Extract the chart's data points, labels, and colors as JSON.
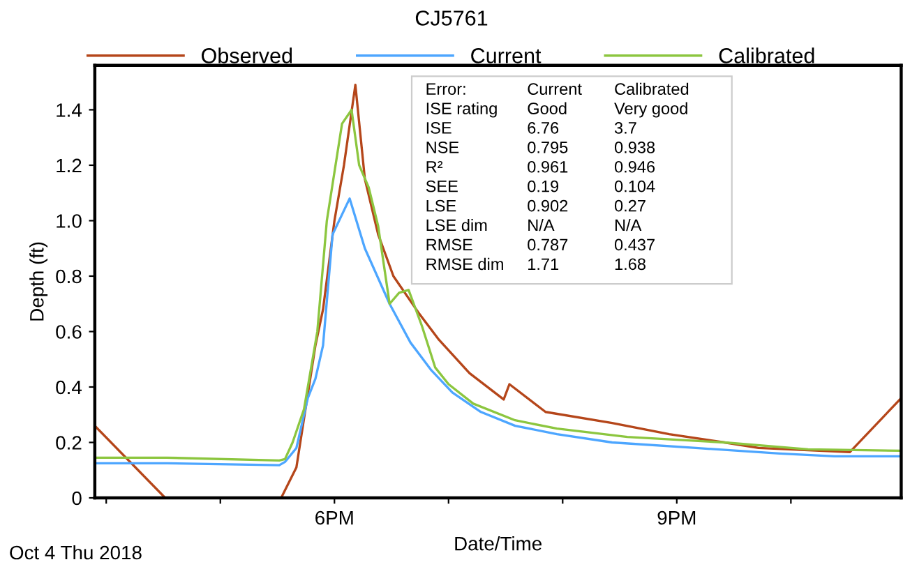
{
  "chart_data": {
    "type": "line",
    "title": "CJ5761",
    "xlabel": "Date/Time",
    "ylabel": "Depth (ft)",
    "series": [
      {
        "name": "Observed",
        "color": "#b5461a",
        "x": [
          "2018-10-04T15:54",
          "2018-10-04T16:31",
          "2018-10-04T17:32",
          "2018-10-04T17:40",
          "2018-10-04T17:50",
          "2018-10-04T17:54",
          "2018-10-04T18:00",
          "2018-10-04T18:05",
          "2018-10-04T18:11",
          "2018-10-04T18:16",
          "2018-10-04T18:23",
          "2018-10-04T18:31",
          "2018-10-04T18:44",
          "2018-10-04T18:55",
          "2018-10-04T19:11",
          "2018-10-04T19:29",
          "2018-10-04T19:32",
          "2018-10-04T19:51",
          "2018-10-04T20:26",
          "2018-10-04T20:56",
          "2018-10-04T21:25",
          "2018-10-04T21:43",
          "2018-10-04T22:31",
          "2018-10-04T22:58"
        ],
        "values": [
          0.26,
          0,
          0,
          0.11,
          0.55,
          0.68,
          1.0,
          1.2,
          1.49,
          1.15,
          0.95,
          0.8,
          0.67,
          0.57,
          0.45,
          0.355,
          0.41,
          0.31,
          0.27,
          0.23,
          0.2,
          0.18,
          0.165,
          0.36
        ]
      },
      {
        "name": "Current",
        "color": "#4da6ff",
        "x": [
          "2018-10-04T15:54",
          "2018-10-04T16:32",
          "2018-10-04T17:31",
          "2018-10-04T17:34",
          "2018-10-04T17:40",
          "2018-10-04T17:46",
          "2018-10-04T17:50",
          "2018-10-04T17:54",
          "2018-10-04T17:59",
          "2018-10-04T18:08",
          "2018-10-04T18:16",
          "2018-10-04T18:29",
          "2018-10-04T18:40",
          "2018-10-04T18:51",
          "2018-10-04T19:02",
          "2018-10-04T19:17",
          "2018-10-04T19:35",
          "2018-10-04T19:57",
          "2018-10-04T20:26",
          "2018-10-04T21:10",
          "2018-10-04T21:54",
          "2018-10-04T22:23",
          "2018-10-04T22:58"
        ],
        "values": [
          0.125,
          0.125,
          0.118,
          0.13,
          0.18,
          0.36,
          0.43,
          0.55,
          0.95,
          1.08,
          0.9,
          0.7,
          0.56,
          0.46,
          0.38,
          0.31,
          0.26,
          0.23,
          0.2,
          0.18,
          0.16,
          0.15,
          0.15
        ]
      },
      {
        "name": "Calibrated",
        "color": "#8cc63f",
        "x": [
          "2018-10-04T15:54",
          "2018-10-04T16:32",
          "2018-10-04T17:31",
          "2018-10-04T17:34",
          "2018-10-04T17:38",
          "2018-10-04T17:44",
          "2018-10-04T17:51",
          "2018-10-04T17:56",
          "2018-10-04T18:04",
          "2018-10-04T18:09",
          "2018-10-04T18:13",
          "2018-10-04T18:18",
          "2018-10-04T18:23",
          "2018-10-04T18:29",
          "2018-10-04T18:34",
          "2018-10-04T18:39",
          "2018-10-04T18:46",
          "2018-10-04T18:53",
          "2018-10-04T19:00",
          "2018-10-04T19:13",
          "2018-10-04T19:35",
          "2018-10-04T19:57",
          "2018-10-04T20:34",
          "2018-10-04T21:25",
          "2018-10-04T22:09",
          "2018-10-04T22:58"
        ],
        "values": [
          0.145,
          0.145,
          0.135,
          0.14,
          0.2,
          0.32,
          0.6,
          1.0,
          1.35,
          1.4,
          1.2,
          1.12,
          0.98,
          0.7,
          0.74,
          0.75,
          0.62,
          0.47,
          0.41,
          0.34,
          0.28,
          0.25,
          0.22,
          0.2,
          0.175,
          0.17
        ]
      }
    ],
    "xlim": [
      "2018-10-04T15:54",
      "2018-10-04T22:58"
    ],
    "ylim": [
      0,
      1.56
    ],
    "xticks": [
      {
        "value": "2018-10-04T16:00",
        "label": null
      },
      {
        "value": "2018-10-04T17:00",
        "label": null
      },
      {
        "value": "2018-10-04T18:00",
        "label": "6PM"
      },
      {
        "value": "2018-10-04T19:00",
        "label": null
      },
      {
        "value": "2018-10-04T20:00",
        "label": null
      },
      {
        "value": "2018-10-04T21:00",
        "label": "9PM"
      },
      {
        "value": "2018-10-04T22:00",
        "label": null
      }
    ],
    "yticks": [
      0,
      0.2,
      0.4,
      0.6,
      0.8,
      {
        "value": 1,
        "label": "1.0"
      },
      1.2,
      1.4
    ],
    "legend": "top",
    "grid": false,
    "marker": "none",
    "line_style": "solid",
    "annotations": [
      "Oct 4 Thu 2018",
      "Error:",
      "Current",
      "Calibrated",
      "ISE rating",
      "Good",
      "Very good",
      "ISE",
      "6.76",
      "3.7",
      "NSE",
      "0.795",
      "0.938",
      "R²",
      "0.961",
      "0.946",
      "SEE",
      "0.19",
      "0.104",
      "LSE",
      "0.902",
      "0.27",
      "LSE dim",
      "N/A",
      "N/A",
      "RMSE",
      "0.787",
      "0.437",
      "RMSE dim",
      "1.71",
      "1.68"
    ]
  }
}
